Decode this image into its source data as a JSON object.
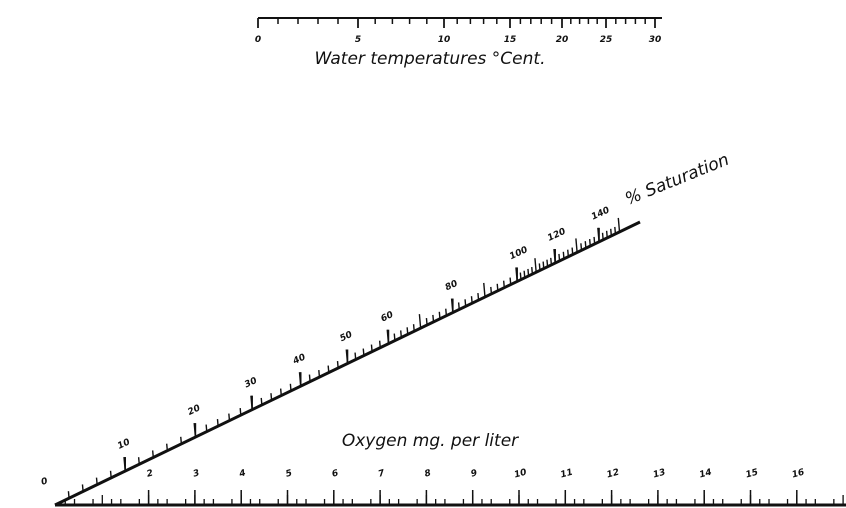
{
  "temperature_scale": {
    "label": "Water temperatures °Cent.",
    "ticks": [
      0,
      5,
      10,
      15,
      20,
      25,
      30
    ]
  },
  "saturation_scale": {
    "label": "% Saturation",
    "ticks": [
      10,
      20,
      30,
      40,
      50,
      60,
      80,
      100,
      120,
      140
    ]
  },
  "oxygen_scale": {
    "label": "Oxygen mg. per liter",
    "ticks": [
      0,
      2,
      3,
      4,
      5,
      6,
      7,
      8,
      9,
      10,
      11,
      12,
      13,
      14,
      15,
      16
    ]
  }
}
